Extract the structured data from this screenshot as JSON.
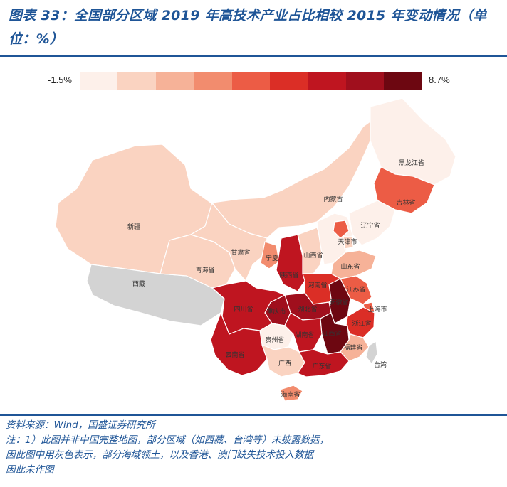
{
  "title": "图表 33：全国部分区域 2019 年高技术产业占比相较 2015 年变动情况（单位：%）",
  "legend": {
    "min_label": "-1.5%",
    "max_label": "8.7%",
    "colors": [
      "#fdf0ea",
      "#fad3c1",
      "#f6b298",
      "#f28c6e",
      "#ec5c45",
      "#db2e26",
      "#bf1520",
      "#a00f1d",
      "#6d0711"
    ]
  },
  "map": {
    "no_data_color": "#d3d3d3",
    "taiwan_color": "#d3d3d3",
    "regions": [
      {
        "id": "xinjiang",
        "label": "新疆",
        "level": 1
      },
      {
        "id": "xizang",
        "label": "西藏",
        "level": null
      },
      {
        "id": "qinghai",
        "label": "青海省",
        "level": 1
      },
      {
        "id": "gansu",
        "label": "甘肃省",
        "level": 1
      },
      {
        "id": "neimenggu",
        "label": "内蒙古",
        "level": 1
      },
      {
        "id": "heilongjiang",
        "label": "黑龙江省",
        "level": 0
      },
      {
        "id": "jilin",
        "label": "吉林省",
        "level": 4
      },
      {
        "id": "liaoning",
        "label": "辽宁省",
        "level": 0
      },
      {
        "id": "ningxia",
        "label": "宁夏",
        "level": 3
      },
      {
        "id": "shaanxi",
        "label": "陕西省",
        "level": 6
      },
      {
        "id": "shanxi",
        "label": "山西省",
        "level": 1
      },
      {
        "id": "hebei",
        "label": "",
        "level": 0
      },
      {
        "id": "beijing",
        "label": "",
        "level": 4
      },
      {
        "id": "tianjin",
        "label": "天津市",
        "level": 1
      },
      {
        "id": "shandong",
        "label": "山东省",
        "level": 2
      },
      {
        "id": "henan",
        "label": "河南省",
        "level": 5
      },
      {
        "id": "sichuan",
        "label": "四川省",
        "level": 6
      },
      {
        "id": "chongqing",
        "label": "重庆市",
        "level": 7
      },
      {
        "id": "hubei",
        "label": "湖北省",
        "level": 7
      },
      {
        "id": "anhui",
        "label": "安徽省",
        "level": 8
      },
      {
        "id": "jiangsu",
        "label": "江苏省",
        "level": 4
      },
      {
        "id": "shanghai",
        "label": "上海市",
        "level": 4
      },
      {
        "id": "zhejiang",
        "label": "浙江省",
        "level": 5
      },
      {
        "id": "hunan",
        "label": "湖南省",
        "level": 6
      },
      {
        "id": "jiangxi",
        "label": "江西省",
        "level": 8
      },
      {
        "id": "fujian",
        "label": "福建省",
        "level": 2
      },
      {
        "id": "guizhou",
        "label": "贵州省",
        "level": 0
      },
      {
        "id": "yunnan",
        "label": "云南省",
        "level": 6
      },
      {
        "id": "guangxi",
        "label": "广西",
        "level": 1
      },
      {
        "id": "guangdong",
        "label": "广东省",
        "level": 6
      },
      {
        "id": "hainan",
        "label": "海南省",
        "level": 3
      },
      {
        "id": "taiwan",
        "label": "台湾",
        "level": null
      }
    ]
  },
  "source": {
    "line1": "资料来源：Wind，国盛证券研究所",
    "line2": "注：1）此图并非中国完整地图，部分区域（如西藏、台湾等）未披露数据，",
    "line3": "因此图中用灰色表示，部分海域领土，以及香港、澳门缺失技术投入数据",
    "line4": "因此未作图"
  }
}
